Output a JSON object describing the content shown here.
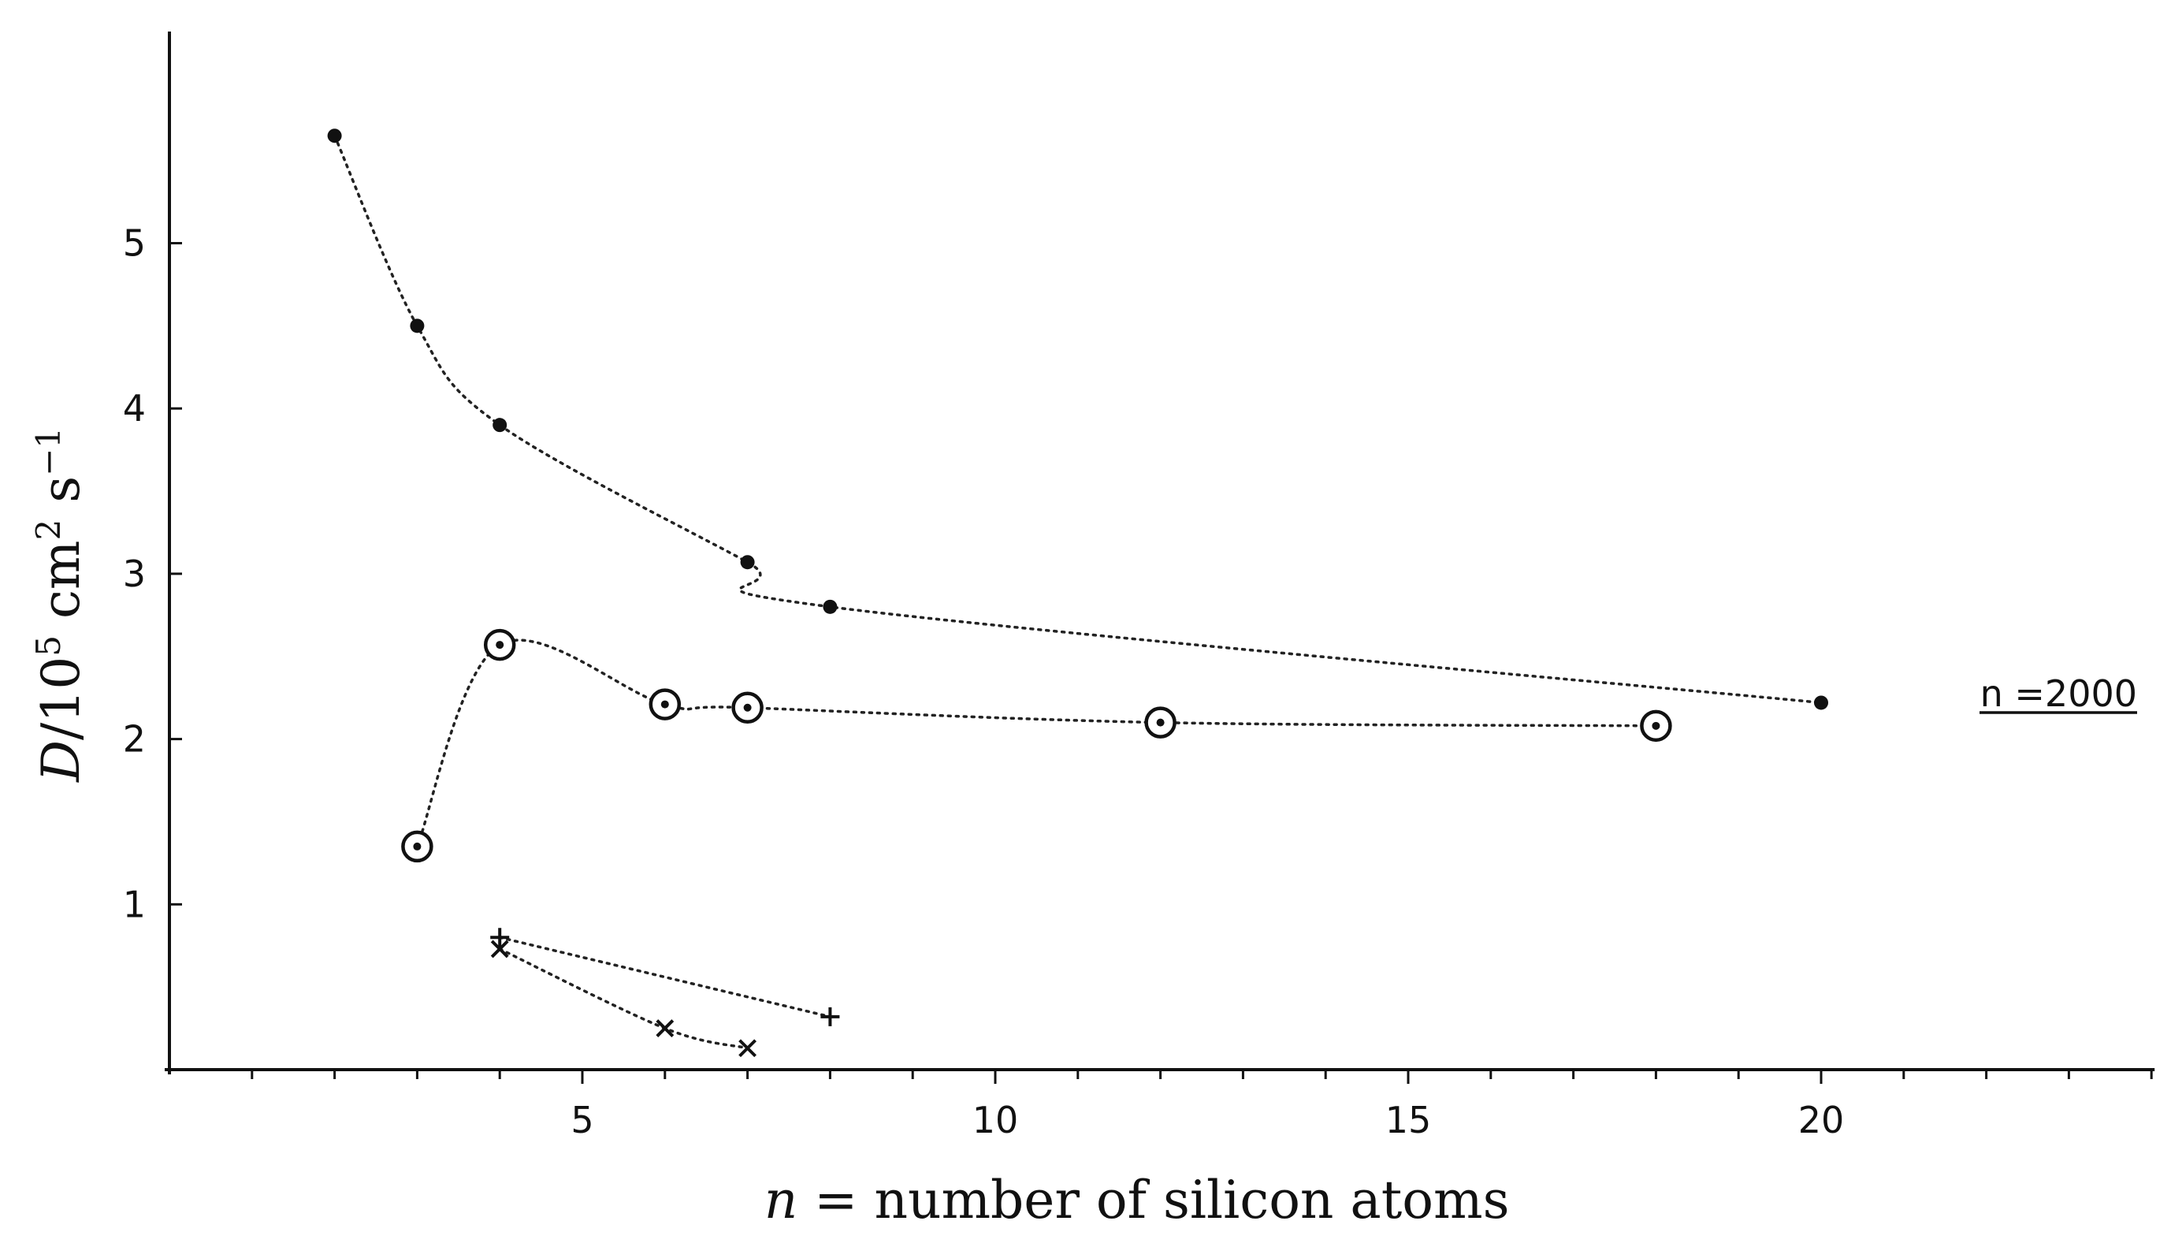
{
  "chart_data": {
    "type": "scatter",
    "title": "",
    "xlabel": {
      "italic": "n",
      "rest": " = number of silicon atoms"
    },
    "ylabel": {
      "italic": "D",
      "rest": "/10",
      "sup1": "5",
      "mid": " cm",
      "sup2": "2",
      "tail": " s",
      "sup3": "−1"
    },
    "xlim": [
      0,
      24
    ],
    "ylim": [
      0,
      6.2
    ],
    "x_ticks": [
      5,
      10,
      15,
      20
    ],
    "x_minor_ticks": [
      1,
      2,
      3,
      4,
      6,
      7,
      8,
      9,
      11,
      12,
      13,
      14,
      16,
      17,
      18,
      19,
      21,
      22,
      23,
      24
    ],
    "y_ticks": [
      1,
      2,
      3,
      4,
      5
    ],
    "grid": false,
    "legend": "none",
    "series": [
      {
        "marker": "filled-circle",
        "x": [
          2,
          3,
          4,
          7,
          8,
          20
        ],
        "y": [
          5.65,
          4.5,
          3.9,
          3.07,
          2.8,
          2.22
        ]
      },
      {
        "marker": "circled-dot",
        "x": [
          3,
          4,
          6,
          7,
          12,
          18
        ],
        "y": [
          1.35,
          2.57,
          2.21,
          2.19,
          2.1,
          2.08
        ]
      },
      {
        "marker": "plus",
        "x": [
          4,
          8
        ],
        "y": [
          0.8,
          0.32
        ]
      },
      {
        "marker": "cross",
        "x": [
          4,
          6,
          7
        ],
        "y": [
          0.73,
          0.25,
          0.13
        ]
      }
    ],
    "annotations": [
      {
        "text": "n =2000",
        "y": 2.16
      }
    ]
  }
}
